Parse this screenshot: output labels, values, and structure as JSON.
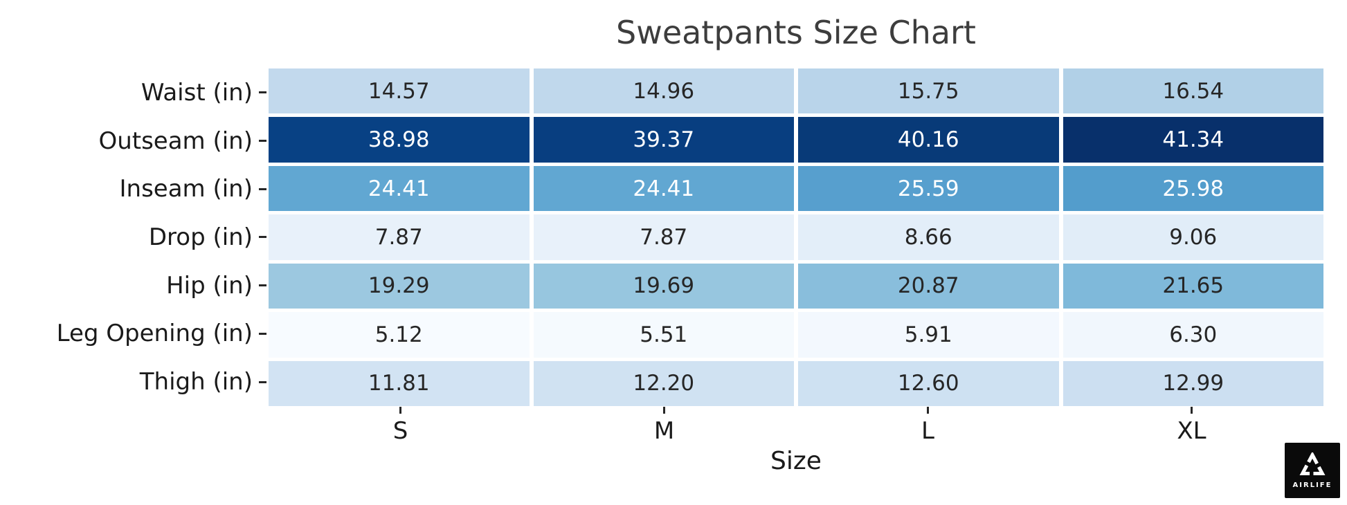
{
  "title": "Sweatpants Size Chart",
  "x_axis": {
    "label": "Size"
  },
  "logo": {
    "text": "AIRLIFE"
  },
  "colors": {
    "background": "#ffffff",
    "grid_line": "#ffffff",
    "dark_cell_text": "#262626",
    "light_cell_text": "#ffffff",
    "title_text": "#3d3d3d",
    "axis_text": "#1a1a1a",
    "logo_background": "#0a0a0a",
    "colormap_min": "#f7fbff",
    "colormap_max": "#08306b"
  },
  "chart_data": {
    "type": "heatmap",
    "title": "Sweatpants Size Chart",
    "xlabel": "Size",
    "ylabel": "",
    "colormap": "Blues",
    "value_range": [
      5.12,
      41.34
    ],
    "annotations": true,
    "columns": [
      "S",
      "M",
      "L",
      "XL"
    ],
    "rows": [
      {
        "label": "Waist (in)",
        "values": [
          14.57,
          14.96,
          15.75,
          16.54
        ],
        "display": [
          "14.57",
          "14.96",
          "15.75",
          "16.54"
        ],
        "cell_colors": [
          "#c2d9ed",
          "#c0d8ec",
          "#b9d4ea",
          "#b1d0e7"
        ],
        "text_color": "dark"
      },
      {
        "label": "Outseam (in)",
        "values": [
          38.98,
          39.37,
          40.16,
          41.34
        ],
        "display": [
          "38.98",
          "39.37",
          "40.16",
          "41.34"
        ],
        "cell_colors": [
          "#084184",
          "#083e80",
          "#083a78",
          "#08306b"
        ],
        "text_color": "light"
      },
      {
        "label": "Inseam (in)",
        "values": [
          24.41,
          24.41,
          25.59,
          25.98
        ],
        "display": [
          "24.41",
          "24.41",
          "25.59",
          "25.98"
        ],
        "cell_colors": [
          "#61a7d2",
          "#61a7d2",
          "#579fce",
          "#539dcc"
        ],
        "text_color": "light"
      },
      {
        "label": "Drop (in)",
        "values": [
          7.87,
          7.87,
          8.66,
          9.06
        ],
        "display": [
          "7.87",
          "7.87",
          "8.66",
          "9.06"
        ],
        "cell_colors": [
          "#e8f1fa",
          "#e8f1fa",
          "#e3eef9",
          "#e1edf8"
        ],
        "text_color": "dark"
      },
      {
        "label": "Hip (in)",
        "values": [
          19.29,
          19.69,
          20.87,
          21.65
        ],
        "display": [
          "19.29",
          "19.69",
          "20.87",
          "21.65"
        ],
        "cell_colors": [
          "#9cc8e0",
          "#97c6df",
          "#89bedc",
          "#7fb9da"
        ],
        "text_color": "dark"
      },
      {
        "label": "Leg Opening (in)",
        "values": [
          5.12,
          5.51,
          5.91,
          6.3
        ],
        "display": [
          "5.12",
          "5.51",
          "5.91",
          "6.30"
        ],
        "cell_colors": [
          "#f7fbff",
          "#f5fafe",
          "#f3f8fe",
          "#f1f7fd"
        ],
        "text_color": "dark"
      },
      {
        "label": "Thigh (in)",
        "values": [
          11.81,
          12.2,
          12.6,
          12.99
        ],
        "display": [
          "11.81",
          "12.20",
          "12.60",
          "12.99"
        ],
        "cell_colors": [
          "#d2e3f3",
          "#d0e2f2",
          "#cee1f2",
          "#ccdff1"
        ],
        "text_color": "dark"
      }
    ]
  }
}
